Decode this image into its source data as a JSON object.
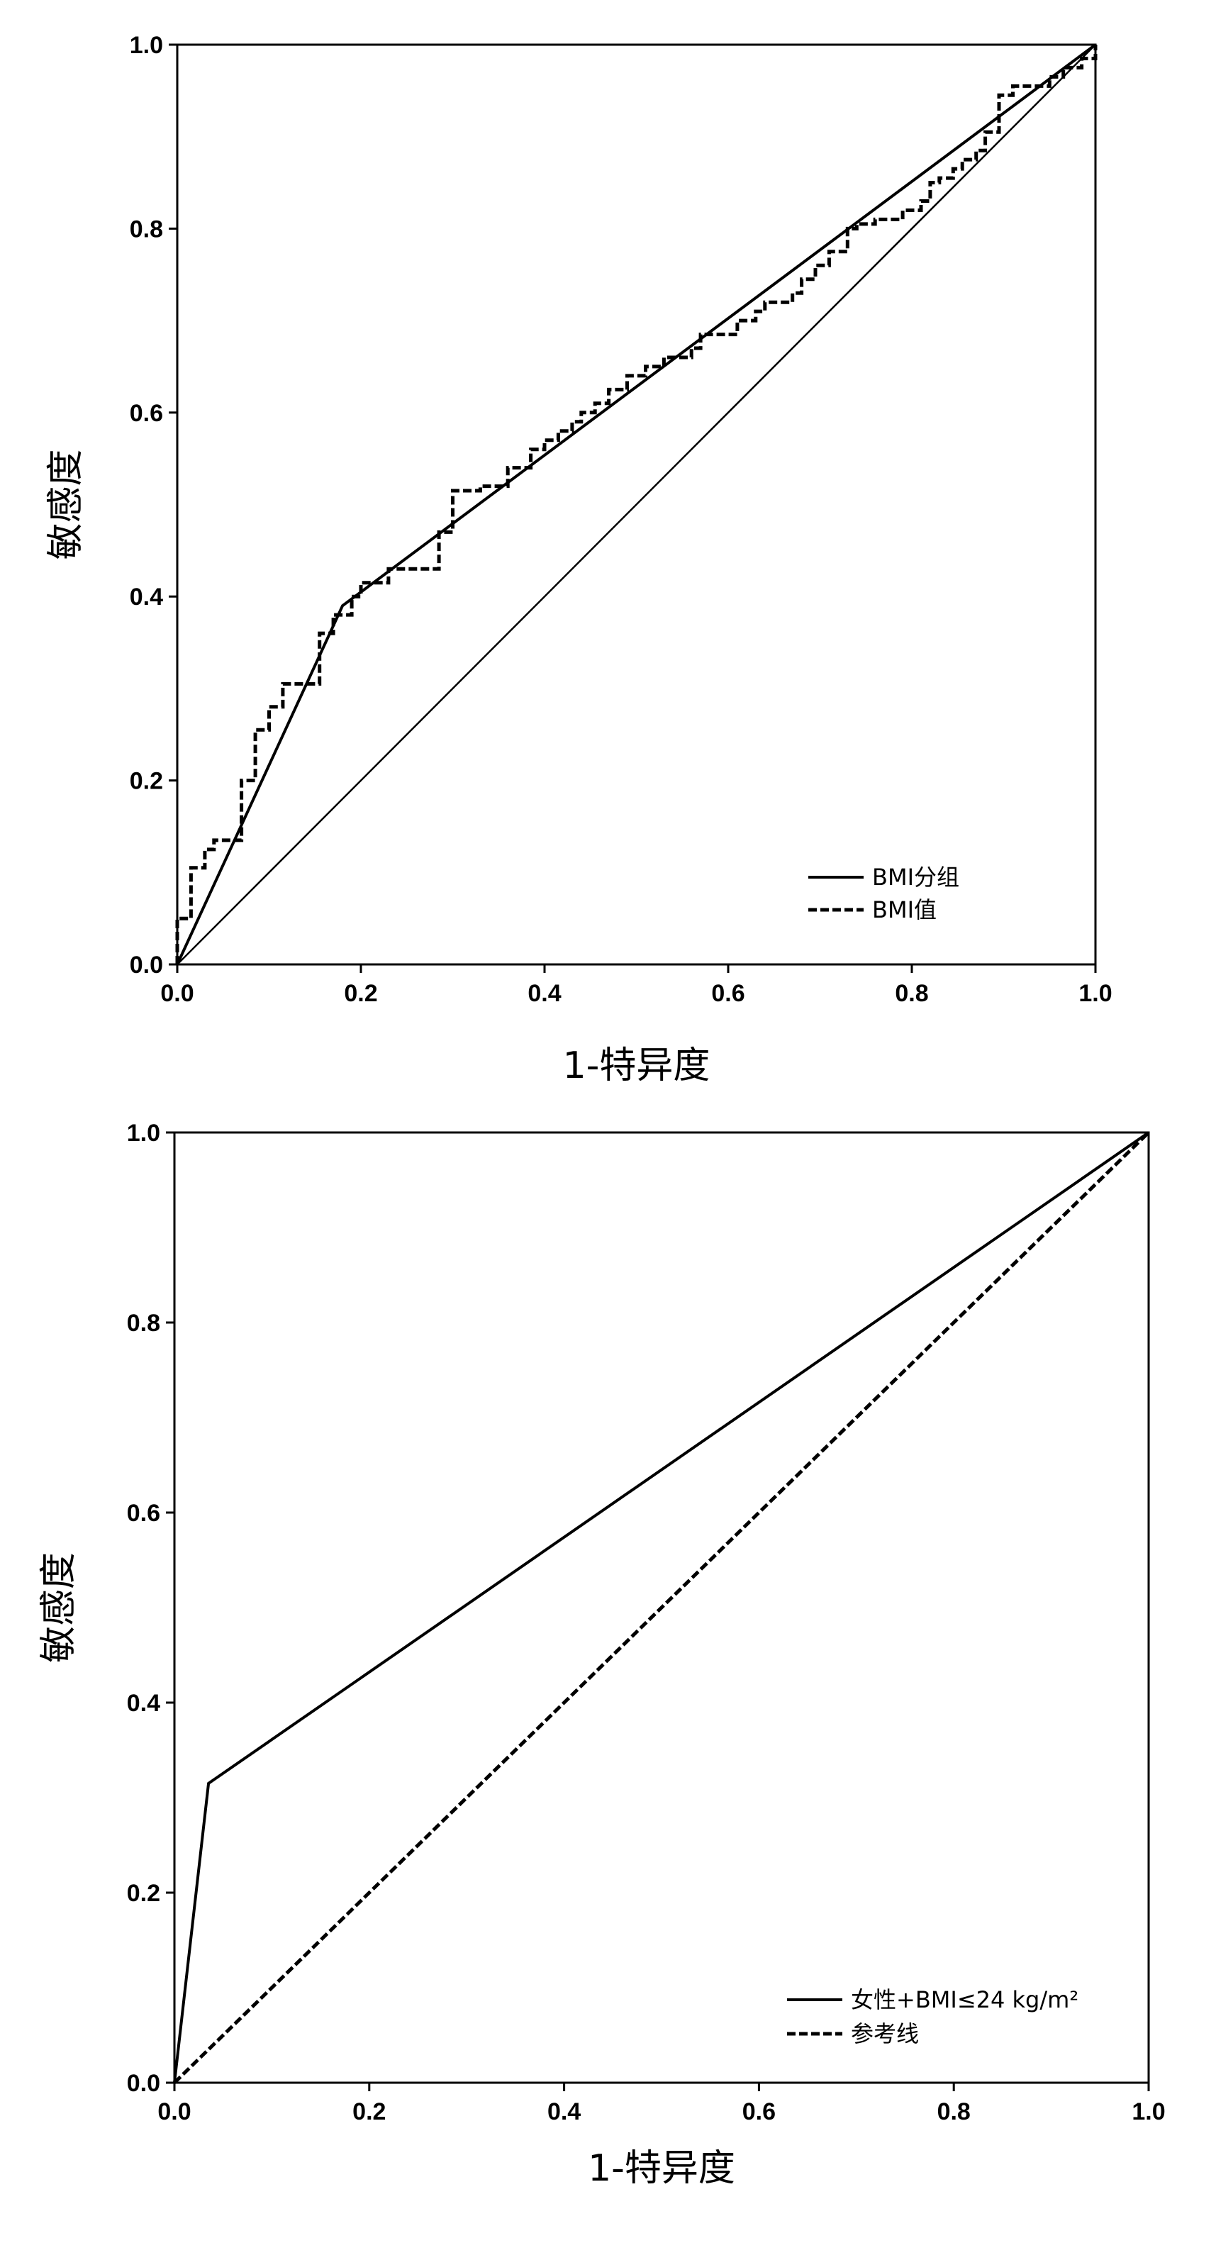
{
  "chart_data": [
    {
      "type": "line",
      "xlabel": "1-特异度",
      "ylabel": "敏感度",
      "xlim": [
        0,
        1
      ],
      "ylim": [
        0,
        1
      ],
      "x_ticks": [
        "0.0",
        "0.2",
        "0.4",
        "0.6",
        "0.8",
        "1.0"
      ],
      "y_ticks": [
        "0.0",
        "0.2",
        "0.4",
        "0.6",
        "0.8",
        "1.0"
      ],
      "grid": false,
      "legend_position": "bottom-right",
      "series": [
        {
          "name": "BMI分组",
          "style": "solid",
          "color": "#000000",
          "points": [
            [
              0.0,
              0.0
            ],
            [
              0.18,
              0.39
            ],
            [
              1.0,
              1.0
            ]
          ]
        },
        {
          "name": "BMI值",
          "style": "dashed",
          "color": "#000000",
          "points": [
            [
              0.0,
              0.0
            ],
            [
              0.0,
              0.05
            ],
            [
              0.015,
              0.05
            ],
            [
              0.015,
              0.105
            ],
            [
              0.03,
              0.105
            ],
            [
              0.03,
              0.125
            ],
            [
              0.04,
              0.125
            ],
            [
              0.04,
              0.135
            ],
            [
              0.07,
              0.135
            ],
            [
              0.07,
              0.2
            ],
            [
              0.085,
              0.2
            ],
            [
              0.085,
              0.255
            ],
            [
              0.1,
              0.255
            ],
            [
              0.1,
              0.28
            ],
            [
              0.115,
              0.28
            ],
            [
              0.115,
              0.305
            ],
            [
              0.155,
              0.305
            ],
            [
              0.155,
              0.36
            ],
            [
              0.17,
              0.36
            ],
            [
              0.17,
              0.38
            ],
            [
              0.19,
              0.38
            ],
            [
              0.19,
              0.4
            ],
            [
              0.2,
              0.4
            ],
            [
              0.2,
              0.415
            ],
            [
              0.23,
              0.415
            ],
            [
              0.23,
              0.43
            ],
            [
              0.285,
              0.43
            ],
            [
              0.285,
              0.47
            ],
            [
              0.3,
              0.47
            ],
            [
              0.3,
              0.515
            ],
            [
              0.33,
              0.515
            ],
            [
              0.33,
              0.52
            ],
            [
              0.36,
              0.52
            ],
            [
              0.36,
              0.54
            ],
            [
              0.385,
              0.54
            ],
            [
              0.385,
              0.56
            ],
            [
              0.4,
              0.56
            ],
            [
              0.4,
              0.57
            ],
            [
              0.415,
              0.57
            ],
            [
              0.415,
              0.58
            ],
            [
              0.43,
              0.58
            ],
            [
              0.43,
              0.59
            ],
            [
              0.44,
              0.59
            ],
            [
              0.44,
              0.6
            ],
            [
              0.455,
              0.6
            ],
            [
              0.455,
              0.61
            ],
            [
              0.47,
              0.61
            ],
            [
              0.47,
              0.625
            ],
            [
              0.49,
              0.625
            ],
            [
              0.49,
              0.64
            ],
            [
              0.51,
              0.64
            ],
            [
              0.51,
              0.65
            ],
            [
              0.53,
              0.65
            ],
            [
              0.53,
              0.66
            ],
            [
              0.56,
              0.66
            ],
            [
              0.56,
              0.67
            ],
            [
              0.57,
              0.67
            ],
            [
              0.57,
              0.685
            ],
            [
              0.61,
              0.685
            ],
            [
              0.61,
              0.7
            ],
            [
              0.63,
              0.7
            ],
            [
              0.63,
              0.71
            ],
            [
              0.64,
              0.71
            ],
            [
              0.64,
              0.72
            ],
            [
              0.67,
              0.72
            ],
            [
              0.67,
              0.73
            ],
            [
              0.68,
              0.73
            ],
            [
              0.68,
              0.745
            ],
            [
              0.695,
              0.745
            ],
            [
              0.695,
              0.76
            ],
            [
              0.71,
              0.76
            ],
            [
              0.71,
              0.775
            ],
            [
              0.73,
              0.775
            ],
            [
              0.73,
              0.8
            ],
            [
              0.74,
              0.8
            ],
            [
              0.74,
              0.805
            ],
            [
              0.76,
              0.805
            ],
            [
              0.76,
              0.81
            ],
            [
              0.79,
              0.81
            ],
            [
              0.79,
              0.82
            ],
            [
              0.81,
              0.82
            ],
            [
              0.81,
              0.83
            ],
            [
              0.82,
              0.83
            ],
            [
              0.82,
              0.85
            ],
            [
              0.83,
              0.85
            ],
            [
              0.83,
              0.855
            ],
            [
              0.845,
              0.855
            ],
            [
              0.845,
              0.865
            ],
            [
              0.855,
              0.865
            ],
            [
              0.855,
              0.875
            ],
            [
              0.87,
              0.875
            ],
            [
              0.87,
              0.885
            ],
            [
              0.88,
              0.885
            ],
            [
              0.88,
              0.905
            ],
            [
              0.895,
              0.905
            ],
            [
              0.895,
              0.945
            ],
            [
              0.91,
              0.945
            ],
            [
              0.91,
              0.955
            ],
            [
              0.95,
              0.955
            ],
            [
              0.95,
              0.965
            ],
            [
              0.965,
              0.965
            ],
            [
              0.965,
              0.975
            ],
            [
              0.985,
              0.975
            ],
            [
              0.985,
              0.985
            ],
            [
              1.0,
              0.985
            ],
            [
              1.0,
              1.0
            ]
          ]
        },
        {
          "name": "",
          "style": "thin",
          "color": "#000000",
          "points": [
            [
              0.0,
              0.0
            ],
            [
              1.0,
              1.0
            ]
          ]
        }
      ]
    },
    {
      "type": "line",
      "xlabel": "1-特异度",
      "ylabel": "敏感度",
      "xlim": [
        0,
        1
      ],
      "ylim": [
        0,
        1
      ],
      "x_ticks": [
        "0.0",
        "0.2",
        "0.4",
        "0.6",
        "0.8",
        "1.0"
      ],
      "y_ticks": [
        "0.0",
        "0.2",
        "0.4",
        "0.6",
        "0.8",
        "1.0"
      ],
      "grid": false,
      "legend_position": "bottom-right",
      "series": [
        {
          "name": "女性+BMI≤24 kg/m²",
          "style": "solid",
          "color": "#000000",
          "points": [
            [
              0.0,
              0.0
            ],
            [
              0.035,
              0.315
            ],
            [
              1.0,
              1.0
            ]
          ]
        },
        {
          "name": "参考线",
          "style": "dashed",
          "color": "#000000",
          "points": [
            [
              0.0,
              0.0
            ],
            [
              1.0,
              1.0
            ]
          ]
        }
      ]
    }
  ]
}
